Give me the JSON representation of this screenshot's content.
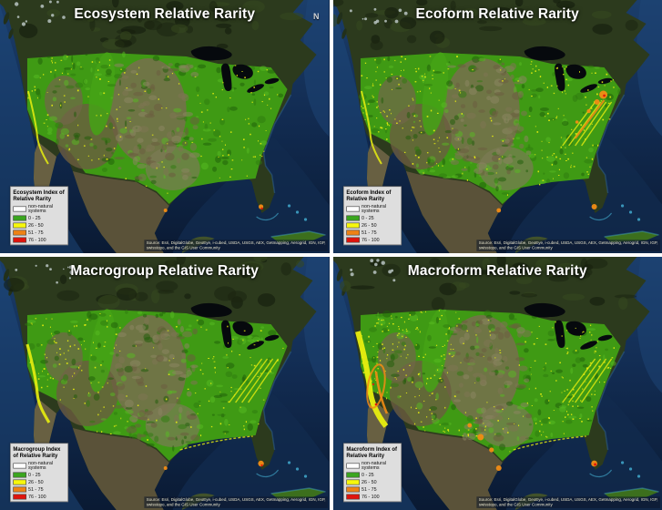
{
  "panels": [
    {
      "title": "Ecosystem Relative Rarity",
      "legend_title": "Ecosystem Index of Relative Rarity",
      "variant": "ecosystem",
      "compass": "N"
    },
    {
      "title": "Ecoform Relative Rarity",
      "legend_title": "Ecoform Index of Relative Rarity",
      "variant": "ecoform"
    },
    {
      "title": "Macrogroup Relative Rarity",
      "legend_title": "Macrogroup Index of Relative Rarity",
      "variant": "macrogroup"
    },
    {
      "title": "Macroform Relative Rarity",
      "legend_title": "Macroform Index of Relative Rarity",
      "variant": "macroform"
    }
  ],
  "legend": {
    "items": [
      {
        "label": "non-natural systems",
        "color": "#ffffff"
      },
      {
        "label": "0 - 25",
        "color": "#3aa61e"
      },
      {
        "label": "26 - 50",
        "color": "#f7f70c"
      },
      {
        "label": "51 - 75",
        "color": "#ef8214"
      },
      {
        "label": "76 - 100",
        "color": "#e0140c"
      }
    ]
  },
  "attribution": {
    "line1": "Source: Esri, DigitalGlobe, GeoEye, i-cubed, USDA, USGS, AEX, Getmapping, Aerogrid, IGN, IGP,",
    "line2": "swisstopo, and the GIS User Community"
  },
  "map_colors": {
    "ocean_deep": "#0a1a33",
    "ocean_mid": "#122c52",
    "ocean_light": "#1b3e6b",
    "coastal_shallow": "#2d6395",
    "caribbean": "#44b0d4",
    "canada_land": "#2c3a1d",
    "mexico_land": "#5a5239",
    "baja_land": "#6f6547",
    "us_green": "#3f9a14",
    "plains_brown": "#786f4e",
    "desert_brown": "#6b5c40",
    "lakes": "#06090d",
    "rarity_yellow": "#e8ee0f",
    "rarity_orange": "#f28c14",
    "rarity_red": "#e0140c"
  }
}
